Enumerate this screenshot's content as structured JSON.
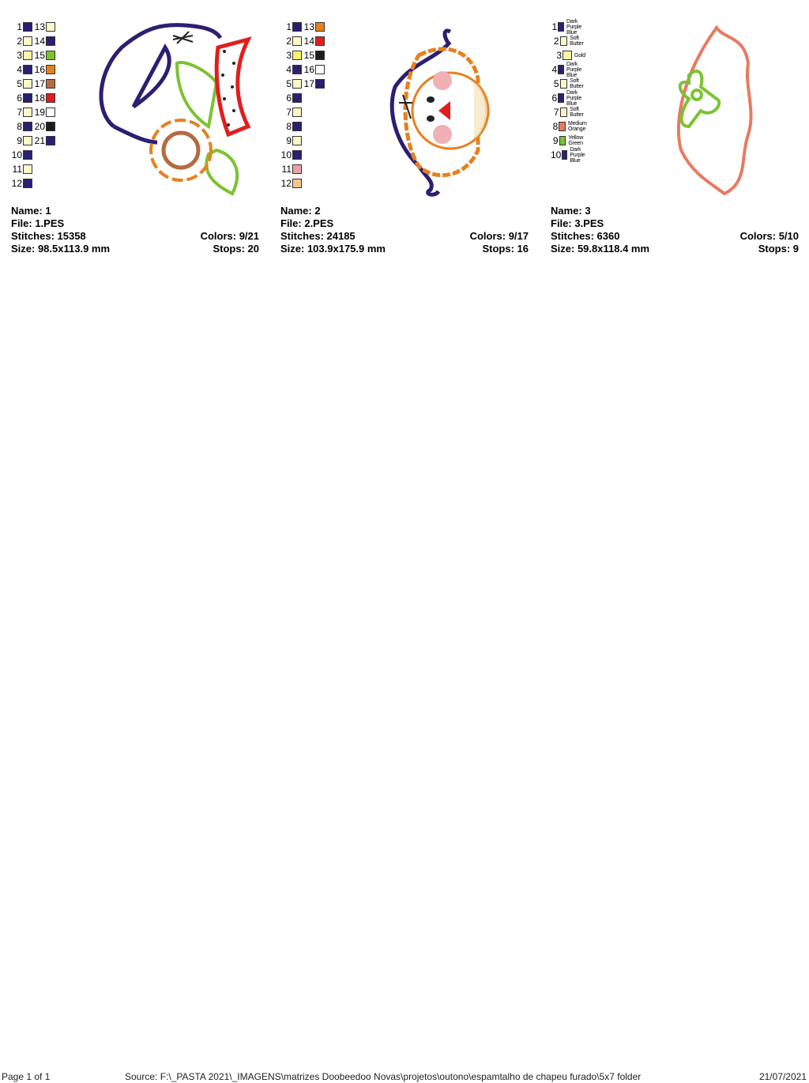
{
  "designs": [
    {
      "name_label": "Name: 1",
      "file_label": "File: 1.PES",
      "stitches_label": "Stitches: 15358",
      "colors_label": "Colors: 9/21",
      "size_label": "Size: 98.5x113.9 mm",
      "stops_label": "Stops: 20",
      "swatches": [
        {
          "n": "1",
          "color": "#2b1f72"
        },
        {
          "n": "2",
          "color": "#fff7c6"
        },
        {
          "n": "3",
          "color": "#fff5a8"
        },
        {
          "n": "4",
          "color": "#2b1f72"
        },
        {
          "n": "5",
          "color": "#fff7c6"
        },
        {
          "n": "6",
          "color": "#2b1f72"
        },
        {
          "n": "7",
          "color": "#fff7c6"
        },
        {
          "n": "8",
          "color": "#2b1f72"
        },
        {
          "n": "9",
          "color": "#fff7c6"
        },
        {
          "n": "10",
          "color": "#2b1f72"
        },
        {
          "n": "11",
          "color": "#fff7c6"
        },
        {
          "n": "12",
          "color": "#2b1f72"
        },
        {
          "n": "13",
          "color": "#fff7c6"
        },
        {
          "n": "14",
          "color": "#2b1f72"
        },
        {
          "n": "15",
          "color": "#7cc232"
        },
        {
          "n": "16",
          "color": "#e8801e"
        },
        {
          "n": "17",
          "color": "#b46a42"
        },
        {
          "n": "18",
          "color": "#e01e1e"
        },
        {
          "n": "19",
          "color": "#ffffff"
        },
        {
          "n": "20",
          "color": "#1c1c1c"
        },
        {
          "n": "21",
          "color": "#2b1f72"
        }
      ]
    },
    {
      "name_label": "Name: 2",
      "file_label": "File: 2.PES",
      "stitches_label": "Stitches: 24185",
      "colors_label": "Colors: 9/17",
      "size_label": "Size: 103.9x175.9 mm",
      "stops_label": "Stops: 16",
      "swatches": [
        {
          "n": "1",
          "color": "#2b1f72"
        },
        {
          "n": "2",
          "color": "#fff7c6"
        },
        {
          "n": "3",
          "color": "#fff466"
        },
        {
          "n": "4",
          "color": "#2b1f72"
        },
        {
          "n": "5",
          "color": "#fff7c6"
        },
        {
          "n": "6",
          "color": "#2b1f72"
        },
        {
          "n": "7",
          "color": "#fff7c6"
        },
        {
          "n": "8",
          "color": "#2b1f72"
        },
        {
          "n": "9",
          "color": "#fff7c6"
        },
        {
          "n": "10",
          "color": "#2b1f72"
        },
        {
          "n": "11",
          "color": "#f0a0a4"
        },
        {
          "n": "12",
          "color": "#f8c48e"
        },
        {
          "n": "13",
          "color": "#e8801e"
        },
        {
          "n": "14",
          "color": "#e01e1e"
        },
        {
          "n": "15",
          "color": "#1c1c1c"
        },
        {
          "n": "16",
          "color": "#ffffff"
        },
        {
          "n": "17",
          "color": "#2b1f72"
        }
      ]
    },
    {
      "name_label": "Name: 3",
      "file_label": "File: 3.PES",
      "stitches_label": "Stitches: 6360",
      "colors_label": "Colors: 5/10",
      "size_label": "Size: 59.8x118.4 mm",
      "stops_label": "Stops: 9",
      "swatches": [
        {
          "n": "1",
          "color": "#2b1f72",
          "label": "Dark Purple Blue"
        },
        {
          "n": "2",
          "color": "#fff7c6",
          "label": "Soft Butter"
        },
        {
          "n": "3",
          "color": "#fff3a0",
          "label": "Gold"
        },
        {
          "n": "4",
          "color": "#2b1f72",
          "label": "Dark Purple Blue"
        },
        {
          "n": "5",
          "color": "#fff7c6",
          "label": "Soft Butter"
        },
        {
          "n": "6",
          "color": "#2b1f72",
          "label": "Dark Purple Blue"
        },
        {
          "n": "7",
          "color": "#fff7c6",
          "label": "Soft Butter"
        },
        {
          "n": "8",
          "color": "#e87a62",
          "label": "Medium Orange"
        },
        {
          "n": "9",
          "color": "#7cc232",
          "label": "Yellow Green"
        },
        {
          "n": "10",
          "color": "#2b1f72",
          "label": "Dark Purple Blue"
        }
      ]
    }
  ],
  "footer": {
    "page": "Page 1 of 1",
    "source": "Source: F:\\_PASTA 2021\\_IMAGENS\\matrizes Doobeedoo Novas\\projetos\\outono\\espamtalho de chapeu furado\\5x7 folder",
    "date": "21/07/2021"
  }
}
